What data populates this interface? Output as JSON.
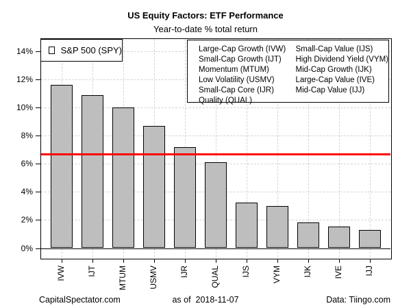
{
  "chart_data": {
    "type": "bar",
    "title": "US Equity Factors: ETF Performance",
    "subtitle": "Year-to-date % total return",
    "categories": [
      "IVW",
      "IJT",
      "MTUM",
      "USMV",
      "IJR",
      "QUAL",
      "IJS",
      "VYM",
      "IJK",
      "IVE",
      "IJJ"
    ],
    "values": [
      11.6,
      10.9,
      10.0,
      8.7,
      7.2,
      6.1,
      3.25,
      3.0,
      1.85,
      1.55,
      1.3
    ],
    "ylim": [
      0,
      14
    ],
    "yticks": [
      0,
      2,
      4,
      6,
      8,
      10,
      12,
      14
    ],
    "ytick_labels": [
      "0%",
      "2%",
      "4%",
      "6%",
      "8%",
      "10%",
      "12%",
      "14%"
    ],
    "grid": "dashed gray, horizontal at each 2% and vertical at each bar center",
    "bar_color": "#BEBEBE",
    "bar_border_color": "#000000",
    "reference_line": {
      "label": "S&P 500 (SPY)",
      "value": 6.7,
      "color": "#FF0000"
    },
    "legend_position": "top, inside plot"
  },
  "legend_etf": {
    "col1": [
      "Large-Cap Growth (IVW)",
      "Small-Cap Growth (IJT)",
      "Momentum (MTUM)",
      "Low Volatility (USMV)",
      "Small-Cap Core (IJR)",
      "Quality (QUAL)"
    ],
    "col2": [
      "Small-Cap Value (IJS)",
      "High Dividend Yield (VYM)",
      "Mid-Cap Growth (IJK)",
      "Large-Cap Value (IVE)",
      "Mid-Cap Value (IJJ)"
    ]
  },
  "footer": {
    "left": "CapitalSpectator.com",
    "center": "as of  2018-11-07",
    "right": "Data: Tiingo.com"
  },
  "colors": {
    "grid": "#D3D3D3",
    "text": "#000000",
    "background": "#FFFFFF"
  }
}
